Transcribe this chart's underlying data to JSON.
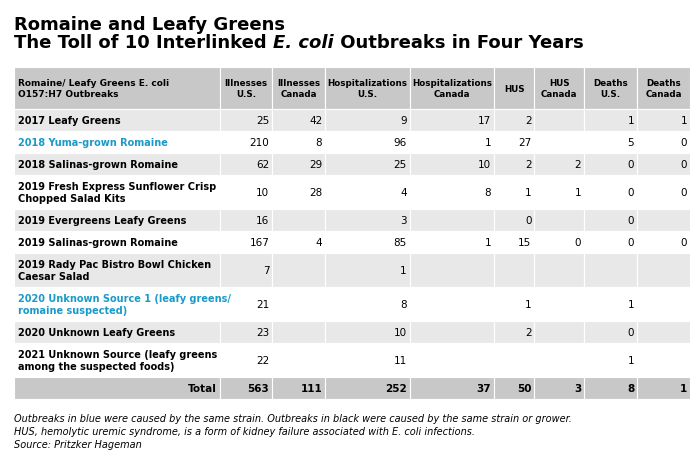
{
  "title_line1": "Romaine and Leafy Greens",
  "title_line2_plain1": "The Toll of 10 Interlinked ",
  "title_line2_italic": "E. coli",
  "title_line2_plain2": " Outbreaks in Four Years",
  "col_headers": [
    "Romaine/ Leafy Greens E. coli\nO157:H7 Outbreaks",
    "Illnesses\nU.S.",
    "Illnesses\nCanada",
    "Hospitalizations\nU.S.",
    "Hospitalizations\nCanada",
    "HUS",
    "HUS\nCanada",
    "Deaths\nU.S.",
    "Deaths\nCanada"
  ],
  "rows": [
    {
      "label": "2017 Leafy Greens",
      "color": "black",
      "values": [
        "25",
        "42",
        "9",
        "17",
        "2",
        "",
        "1",
        "1"
      ],
      "bg": "#e8e8e8"
    },
    {
      "label": "2018 Yuma-grown Romaine",
      "color": "#1a9ac9",
      "values": [
        "210",
        "8",
        "96",
        "1",
        "27",
        "",
        "5",
        "0"
      ],
      "bg": "#ffffff"
    },
    {
      "label": "2018 Salinas-grown Romaine",
      "color": "black",
      "values": [
        "62",
        "29",
        "25",
        "10",
        "2",
        "2",
        "0",
        "0"
      ],
      "bg": "#e8e8e8"
    },
    {
      "label": "2019 Fresh Express Sunflower Crisp\nChopped Salad Kits",
      "color": "black",
      "values": [
        "10",
        "28",
        "4",
        "8",
        "1",
        "1",
        "0",
        "0"
      ],
      "bg": "#ffffff"
    },
    {
      "label": "2019 Evergreens Leafy Greens",
      "color": "black",
      "values": [
        "16",
        "",
        "3",
        "",
        "0",
        "",
        "0",
        ""
      ],
      "bg": "#e8e8e8"
    },
    {
      "label": "2019 Salinas-grown Romaine",
      "color": "black",
      "values": [
        "167",
        "4",
        "85",
        "1",
        "15",
        "0",
        "0",
        "0"
      ],
      "bg": "#ffffff"
    },
    {
      "label": "2019 Rady Pac Bistro Bowl Chicken\nCaesar Salad",
      "color": "black",
      "values": [
        "7",
        "",
        "1",
        "",
        "",
        "",
        "",
        ""
      ],
      "bg": "#e8e8e8"
    },
    {
      "label": "2020 Unknown Source 1 (leafy greens/\nromaine suspected)",
      "color": "#1a9ac9",
      "values": [
        "21",
        "",
        "8",
        "",
        "1",
        "",
        "1",
        ""
      ],
      "bg": "#ffffff"
    },
    {
      "label": "2020 Unknown Leafy Greens",
      "color": "black",
      "values": [
        "23",
        "",
        "10",
        "",
        "2",
        "",
        "0",
        ""
      ],
      "bg": "#e8e8e8"
    },
    {
      "label": "2021 Unknown Source (leafy greens\namong the suspected foods)",
      "color": "black",
      "values": [
        "22",
        "",
        "11",
        "",
        "",
        "",
        "1",
        ""
      ],
      "bg": "#ffffff"
    }
  ],
  "total_row": {
    "label": "Total",
    "values": [
      "563",
      "111",
      "252",
      "37",
      "50",
      "3",
      "8",
      "1"
    ],
    "bg": "#c8c8c8"
  },
  "footnote1": "Outbreaks in blue were caused by the same strain. Outbreaks in black were caused by the same strain or grower.",
  "footnote2": "HUS, hemolytic uremic syndrome, is a form of kidney failure associated with E. coli infections.",
  "footnote3": "Source: Pritzker Hageman",
  "header_bg": "#c8c8c8",
  "col_rel_widths": [
    2.8,
    0.72,
    0.72,
    1.15,
    1.15,
    0.55,
    0.68,
    0.72,
    0.72
  ]
}
